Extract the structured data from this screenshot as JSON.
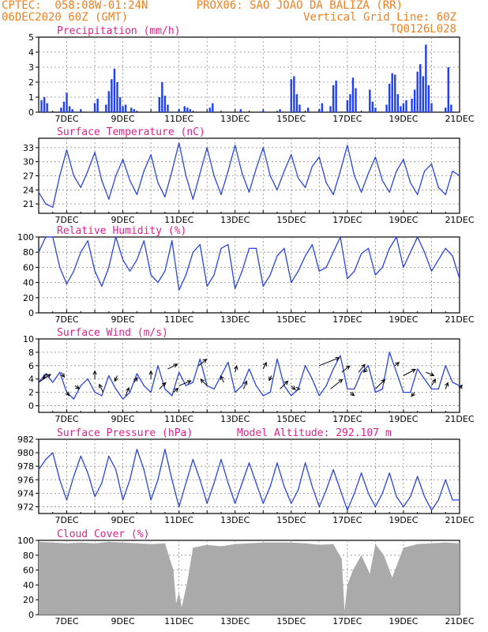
{
  "header": {
    "left_line1": "CPTEC:  058:08W-01:24N",
    "right_line1": "PROX06: SAO JOAO DA BALIZA (RR)",
    "left_line2": "06DEC2020 60Z (GMT)",
    "right_line2": "Vertical Grid Line: 60Z",
    "right_line3": "TQ0126L028"
  },
  "colors": {
    "header": "#f07f1f",
    "title": "#e0218a",
    "line": "#2a44e0",
    "bar": "#1f3fff",
    "cloud": "#aaaaaa",
    "arrow": "#000000"
  },
  "chart_data": [
    {
      "type": "bar",
      "title": "Precipitation  (mm/h)",
      "xlabel": "",
      "ylabel": "",
      "x_ticks": [
        "7DEC",
        "9DEC",
        "11DEC",
        "13DEC",
        "15DEC",
        "17DEC",
        "19DEC",
        "21DEC"
      ],
      "xlim": [
        6.0,
        21.0
      ],
      "ylim": [
        0,
        5
      ],
      "y_ticks": [
        0,
        1,
        2,
        3,
        4,
        5
      ],
      "x": [
        6.1,
        6.2,
        6.3,
        6.8,
        6.9,
        7.0,
        7.1,
        7.2,
        7.5,
        8.0,
        8.1,
        8.4,
        8.5,
        8.6,
        8.7,
        8.8,
        8.9,
        9.0,
        9.1,
        9.3,
        9.4,
        10.3,
        10.4,
        10.5,
        10.6,
        11.0,
        11.2,
        11.3,
        11.4,
        12.1,
        12.2,
        13.2,
        14.0,
        14.6,
        15.0,
        15.1,
        15.2,
        15.3,
        15.6,
        16.0,
        16.1,
        16.4,
        16.5,
        16.6,
        17.0,
        17.1,
        17.2,
        17.3,
        17.8,
        17.9,
        18.0,
        18.4,
        18.5,
        18.6,
        18.7,
        18.8,
        18.9,
        19.0,
        19.1,
        19.3,
        19.4,
        19.5,
        19.6,
        19.7,
        19.8,
        19.9,
        20.0,
        20.5,
        20.6,
        20.7
      ],
      "values": [
        0.8,
        1.0,
        0.6,
        0.3,
        0.7,
        1.3,
        0.4,
        0.2,
        0.2,
        0.6,
        0.9,
        0.5,
        1.4,
        2.2,
        2.9,
        2.0,
        1.0,
        0.4,
        0.5,
        0.3,
        0.2,
        1.0,
        2.0,
        1.1,
        0.5,
        0.2,
        0.4,
        0.3,
        0.2,
        0.3,
        0.6,
        0.2,
        0.1,
        0.2,
        2.2,
        2.4,
        1.2,
        0.5,
        0.3,
        0.2,
        0.6,
        0.4,
        1.8,
        2.1,
        0.8,
        1.2,
        2.3,
        1.6,
        1.5,
        0.7,
        0.3,
        0.5,
        1.9,
        2.6,
        2.5,
        1.2,
        0.4,
        0.6,
        0.8,
        0.9,
        1.5,
        2.7,
        3.2,
        2.4,
        4.5,
        1.8,
        0.6,
        0.3,
        3.0,
        0.5
      ]
    },
    {
      "type": "line",
      "title": "Surface Temperature  (nC)",
      "xlabel": "",
      "ylabel": "",
      "x_ticks": [
        "7DEC",
        "9DEC",
        "11DEC",
        "13DEC",
        "15DEC",
        "17DEC",
        "19DEC",
        "21DEC"
      ],
      "xlim": [
        6.0,
        21.0
      ],
      "ylim": [
        19,
        35
      ],
      "y_ticks": [
        21,
        24,
        27,
        30,
        33
      ],
      "x": [
        6.0,
        6.25,
        6.5,
        6.75,
        7.0,
        7.25,
        7.5,
        7.75,
        8.0,
        8.25,
        8.5,
        8.75,
        9.0,
        9.25,
        9.5,
        9.75,
        10.0,
        10.25,
        10.5,
        10.75,
        11.0,
        11.25,
        11.5,
        11.75,
        12.0,
        12.25,
        12.5,
        12.75,
        13.0,
        13.25,
        13.5,
        13.75,
        14.0,
        14.25,
        14.5,
        14.75,
        15.0,
        15.25,
        15.5,
        15.75,
        16.0,
        16.25,
        16.5,
        16.75,
        17.0,
        17.25,
        17.5,
        17.75,
        18.0,
        18.25,
        18.5,
        18.75,
        19.0,
        19.25,
        19.5,
        19.75,
        20.0,
        20.25,
        20.5,
        20.75,
        21.0
      ],
      "values": [
        23.5,
        21.0,
        20.3,
        27.0,
        32.5,
        27.0,
        24.5,
        28.0,
        32.0,
        26.0,
        22.0,
        27.0,
        30.5,
        26.0,
        23.0,
        28.0,
        31.5,
        25.5,
        22.5,
        28.0,
        34.0,
        27.0,
        22.0,
        27.5,
        33.0,
        27.0,
        23.0,
        28.0,
        33.5,
        27.5,
        23.5,
        28.5,
        33.0,
        27.0,
        24.0,
        28.0,
        31.5,
        26.5,
        24.5,
        29.0,
        31.0,
        25.5,
        23.0,
        28.0,
        33.5,
        27.0,
        23.5,
        27.5,
        31.0,
        26.0,
        23.5,
        28.0,
        30.5,
        25.5,
        23.0,
        28.0,
        29.5,
        24.5,
        23.0,
        28.0,
        27.0
      ]
    },
    {
      "type": "line",
      "title": "Relative Humidity  (%)",
      "xlabel": "",
      "ylabel": "",
      "x_ticks": [
        "7DEC",
        "9DEC",
        "11DEC",
        "13DEC",
        "15DEC",
        "17DEC",
        "19DEC",
        "21DEC"
      ],
      "xlim": [
        6.0,
        21.0
      ],
      "ylim": [
        0,
        100
      ],
      "y_ticks": [
        0,
        20,
        40,
        60,
        80,
        100
      ],
      "x": [
        6.0,
        6.25,
        6.5,
        6.75,
        7.0,
        7.25,
        7.5,
        7.75,
        8.0,
        8.25,
        8.5,
        8.75,
        9.0,
        9.25,
        9.5,
        9.75,
        10.0,
        10.25,
        10.5,
        10.75,
        11.0,
        11.25,
        11.5,
        11.75,
        12.0,
        12.25,
        12.5,
        12.75,
        13.0,
        13.25,
        13.5,
        13.75,
        14.0,
        14.25,
        14.5,
        14.75,
        15.0,
        15.25,
        15.5,
        15.75,
        16.0,
        16.25,
        16.5,
        16.75,
        17.0,
        17.25,
        17.5,
        17.75,
        18.0,
        18.25,
        18.5,
        18.75,
        19.0,
        19.25,
        19.5,
        19.75,
        20.0,
        20.25,
        20.5,
        20.75,
        21.0
      ],
      "values": [
        80,
        100,
        100,
        60,
        38,
        55,
        80,
        95,
        55,
        35,
        60,
        100,
        70,
        55,
        70,
        95,
        50,
        40,
        55,
        95,
        30,
        50,
        80,
        90,
        35,
        50,
        85,
        90,
        32,
        55,
        85,
        85,
        35,
        50,
        75,
        85,
        40,
        55,
        75,
        90,
        55,
        60,
        80,
        100,
        45,
        55,
        78,
        85,
        50,
        60,
        85,
        100,
        60,
        80,
        100,
        80,
        55,
        70,
        85,
        75,
        45
      ]
    },
    {
      "type": "line",
      "title": "Surface Wind  (m/s)",
      "xlabel": "",
      "ylabel": "",
      "x_ticks": [
        "7DEC",
        "9DEC",
        "11DEC",
        "13DEC",
        "15DEC",
        "17DEC",
        "19DEC",
        "21DEC"
      ],
      "xlim": [
        6.0,
        21.0
      ],
      "ylim": [
        -1,
        10
      ],
      "y_ticks": [
        0,
        2,
        4,
        6,
        8,
        10
      ],
      "x": [
        6.0,
        6.25,
        6.5,
        6.75,
        7.0,
        7.25,
        7.5,
        7.75,
        8.0,
        8.25,
        8.5,
        8.75,
        9.0,
        9.25,
        9.5,
        9.75,
        10.0,
        10.25,
        10.5,
        10.75,
        11.0,
        11.25,
        11.5,
        11.75,
        12.0,
        12.25,
        12.5,
        12.75,
        13.0,
        13.25,
        13.5,
        13.75,
        14.0,
        14.25,
        14.5,
        14.75,
        15.0,
        15.25,
        15.5,
        15.75,
        16.0,
        16.25,
        16.5,
        16.75,
        17.0,
        17.25,
        17.5,
        17.75,
        18.0,
        18.25,
        18.5,
        18.75,
        19.0,
        19.25,
        19.5,
        19.75,
        20.0,
        20.25,
        20.5,
        20.75,
        21.0
      ],
      "values": [
        3.5,
        4.8,
        3.5,
        5.0,
        2.0,
        1.0,
        3.0,
        4.0,
        2.0,
        1.5,
        4.5,
        2.5,
        1.0,
        2.0,
        4.8,
        3.0,
        2.0,
        6.0,
        2.5,
        1.5,
        5.0,
        3.0,
        3.5,
        7.0,
        3.0,
        2.5,
        4.5,
        6.5,
        2.0,
        3.0,
        5.5,
        3.0,
        1.5,
        2.0,
        7.0,
        3.0,
        1.5,
        2.5,
        6.0,
        4.0,
        1.5,
        3.0,
        5.5,
        7.5,
        2.5,
        2.5,
        5.0,
        6.0,
        2.0,
        2.5,
        8.0,
        5.0,
        2.0,
        2.0,
        5.5,
        4.0,
        2.5,
        2.5,
        6.0,
        3.5,
        3.0
      ]
    },
    {
      "type": "line",
      "title": "Surface Pressure  (hPa)",
      "subtitle": "Model Altitude: 292.107  m",
      "xlabel": "",
      "ylabel": "",
      "x_ticks": [
        "7DEC",
        "9DEC",
        "11DEC",
        "13DEC",
        "15DEC",
        "17DEC",
        "19DEC",
        "21DEC"
      ],
      "xlim": [
        6.0,
        21.0
      ],
      "ylim": [
        971,
        982
      ],
      "y_ticks": [
        972,
        974,
        976,
        978,
        980,
        982
      ],
      "x": [
        6.0,
        6.25,
        6.5,
        6.75,
        7.0,
        7.25,
        7.5,
        7.75,
        8.0,
        8.25,
        8.5,
        8.75,
        9.0,
        9.25,
        9.5,
        9.75,
        10.0,
        10.25,
        10.5,
        10.75,
        11.0,
        11.25,
        11.5,
        11.75,
        12.0,
        12.25,
        12.5,
        12.75,
        13.0,
        13.25,
        13.5,
        13.75,
        14.0,
        14.25,
        14.5,
        14.75,
        15.0,
        15.25,
        15.5,
        15.75,
        16.0,
        16.25,
        16.5,
        16.75,
        17.0,
        17.25,
        17.5,
        17.75,
        18.0,
        18.25,
        18.5,
        18.75,
        19.0,
        19.25,
        19.5,
        19.75,
        20.0,
        20.25,
        20.5,
        20.75,
        21.0
      ],
      "values": [
        977.5,
        979.0,
        980.0,
        976.0,
        973.0,
        976.5,
        979.5,
        977.0,
        973.5,
        975.5,
        979.5,
        977.5,
        973.0,
        976.0,
        980.5,
        977.5,
        973.0,
        976.0,
        980.5,
        976.0,
        972.0,
        975.5,
        979.0,
        976.0,
        972.5,
        975.5,
        979.0,
        975.5,
        972.5,
        975.5,
        978.5,
        975.5,
        972.5,
        975.0,
        978.5,
        975.0,
        972.5,
        974.5,
        978.5,
        975.0,
        972.0,
        974.5,
        977.5,
        974.5,
        971.5,
        974.0,
        977.0,
        974.0,
        972.0,
        974.0,
        977.0,
        973.5,
        972.0,
        973.5,
        976.5,
        973.5,
        971.5,
        973.0,
        976.0,
        973.0,
        973.0
      ]
    },
    {
      "type": "area",
      "title": "Cloud Cover  (%)",
      "xlabel": "",
      "ylabel": "",
      "x_ticks": [
        "7DEC",
        "9DEC",
        "11DEC",
        "13DEC",
        "15DEC",
        "17DEC",
        "19DEC",
        "21DEC"
      ],
      "xlim": [
        6.0,
        21.0
      ],
      "ylim": [
        0,
        100
      ],
      "y_ticks": [
        0,
        20,
        40,
        60,
        80,
        100
      ],
      "x": [
        6.0,
        6.5,
        7.0,
        7.5,
        8.0,
        8.5,
        9.0,
        9.5,
        10.0,
        10.5,
        10.8,
        10.9,
        11.0,
        11.1,
        11.3,
        11.5,
        12.0,
        12.5,
        13.0,
        13.5,
        14.0,
        14.5,
        15.0,
        15.5,
        16.0,
        16.5,
        16.8,
        16.9,
        17.0,
        17.2,
        17.5,
        17.8,
        18.0,
        18.3,
        18.6,
        19.0,
        19.5,
        20.0,
        20.5,
        21.0
      ],
      "values": [
        98,
        97,
        96,
        97,
        96,
        98,
        97,
        96,
        95,
        96,
        60,
        15,
        30,
        10,
        45,
        90,
        94,
        92,
        95,
        96,
        97,
        97,
        97,
        96,
        94,
        95,
        75,
        5,
        40,
        60,
        80,
        55,
        95,
        80,
        50,
        90,
        95,
        96,
        97,
        96
      ]
    },
    {
      "type": "quiver",
      "title": "wind direction arrows",
      "x": [
        6.0,
        6.3,
        6.8,
        7.0,
        7.3,
        8.0,
        8.3,
        8.8,
        9.1,
        9.4,
        10.0,
        10.3,
        10.6,
        10.8,
        11.0,
        11.7,
        12.0,
        12.6,
        13.0,
        13.3,
        14.0,
        14.3,
        14.6,
        15.0,
        15.3,
        16.0,
        16.4,
        16.8,
        17.1,
        17.4,
        17.7,
        18.0,
        18.7,
        19.0,
        19.4,
        19.8,
        20.0,
        20.5,
        21.0
      ],
      "y": [
        3.5,
        4.8,
        5.0,
        2.0,
        3.0,
        4.0,
        2.0,
        4.5,
        1.5,
        3.5,
        4.0,
        2.5,
        5.5,
        2.0,
        3.0,
        6.0,
        3.0,
        3.5,
        5.0,
        2.5,
        5.5,
        4.5,
        2.5,
        3.0,
        2.5,
        6.0,
        2.5,
        5.0,
        2.0,
        5.0,
        5.5,
        2.5,
        6.0,
        4.5,
        2.0,
        5.0,
        3.0,
        2.5,
        2.5
      ],
      "u": [
        1.5,
        -0.5,
        0.4,
        0.3,
        0.5,
        0.0,
        -0.5,
        -0.3,
        0.4,
        0.4,
        0.0,
        0.8,
        1.2,
        0.6,
        1.5,
        1.0,
        -0.8,
        -0.4,
        0.2,
        0.4,
        0.4,
        -0.3,
        1.0,
        0.5,
        0.0,
        2.5,
        1.5,
        1.0,
        0.5,
        0.8,
        -0.4,
        1.2,
        0.5,
        1.5,
        -0.4,
        1.0,
        0.5,
        0.3,
        0.3
      ],
      "v": [
        1.0,
        -0.6,
        -0.6,
        -0.4,
        -0.4,
        1.0,
        1.0,
        -0.7,
        1.0,
        0.6,
        1.0,
        0.8,
        0.6,
        0.5,
        0.6,
        0.8,
        0.8,
        0.8,
        0.8,
        1.0,
        0.8,
        -0.6,
        1.0,
        -0.5,
        0.0,
        1.0,
        1.2,
        0.8,
        -0.4,
        1.0,
        -0.4,
        1.2,
        0.4,
        0.8,
        -0.5,
        -0.4,
        0.8,
        0.8,
        0.5
      ]
    }
  ]
}
